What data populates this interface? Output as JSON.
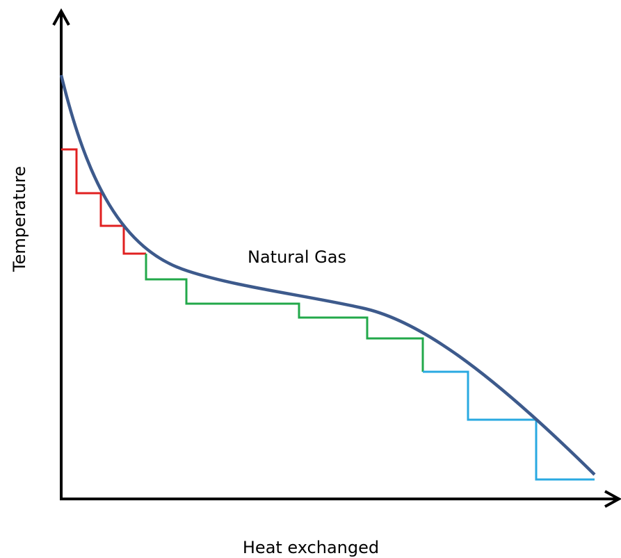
{
  "diagram": {
    "curve_label": "Natural Gas",
    "y_axis_label": "Temperature",
    "x_axis_label": "Heat exchanged"
  }
}
